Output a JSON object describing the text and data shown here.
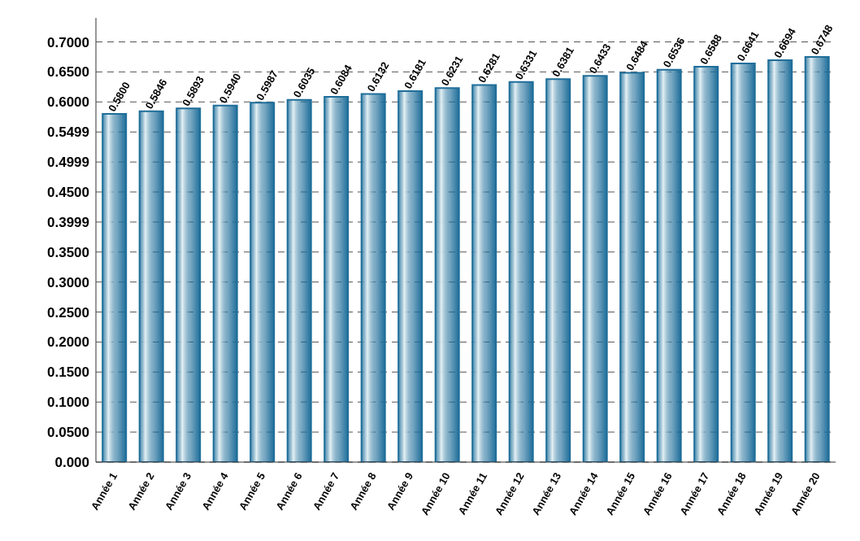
{
  "chart_data": {
    "type": "bar",
    "categories": [
      "Année 1",
      "Année 2",
      "Année 3",
      "Année 4",
      "Année 5",
      "Année 6",
      "Année 7",
      "Année 8",
      "Année 9",
      "Année 10",
      "Année 11",
      "Année 12",
      "Année 13",
      "Année 14",
      "Année 15",
      "Année 16",
      "Année 17",
      "Année 18",
      "Année 19",
      "Année 20"
    ],
    "values": [
      0.58,
      0.5846,
      0.5893,
      0.594,
      0.5987,
      0.6035,
      0.6084,
      0.6132,
      0.6181,
      0.6231,
      0.6281,
      0.6331,
      0.6381,
      0.6433,
      0.6484,
      0.6536,
      0.6588,
      0.6641,
      0.6694,
      0.6748
    ],
    "color": "#1f6e9a",
    "value_labels": [
      "0.5800",
      "0.5846",
      "0.5893",
      "0.5940",
      "0.5987",
      "0.6035",
      "0.6084",
      "0.6132",
      "0.6181",
      "0.6231",
      "0.6281",
      "0.6331",
      "0.6381",
      "0.6433",
      "0.6484",
      "0.6536",
      "0.6588",
      "0.6641",
      "0.6694",
      "0.6748"
    ],
    "ylim": [
      0,
      0.74
    ],
    "yticks": [
      {
        "value": 0,
        "label": "0.000"
      },
      {
        "value": 0.05,
        "label": "0.0500"
      },
      {
        "value": 0.1,
        "label": "0.1000"
      },
      {
        "value": 0.15,
        "label": "0.1500"
      },
      {
        "value": 0.2,
        "label": "0.2000"
      },
      {
        "value": 0.25,
        "label": "0.2500"
      },
      {
        "value": 0.3,
        "label": "0.3000"
      },
      {
        "value": 0.35,
        "label": "0.3500"
      },
      0.3999,
      {
        "value": 0.45,
        "label": "0.4500"
      },
      0.4999,
      0.5499,
      {
        "value": 0.6,
        "label": "0.6000"
      },
      {
        "value": 0.65,
        "label": "0.6500"
      },
      {
        "value": 0.7,
        "label": "0.7000"
      }
    ],
    "grid": "y"
  }
}
